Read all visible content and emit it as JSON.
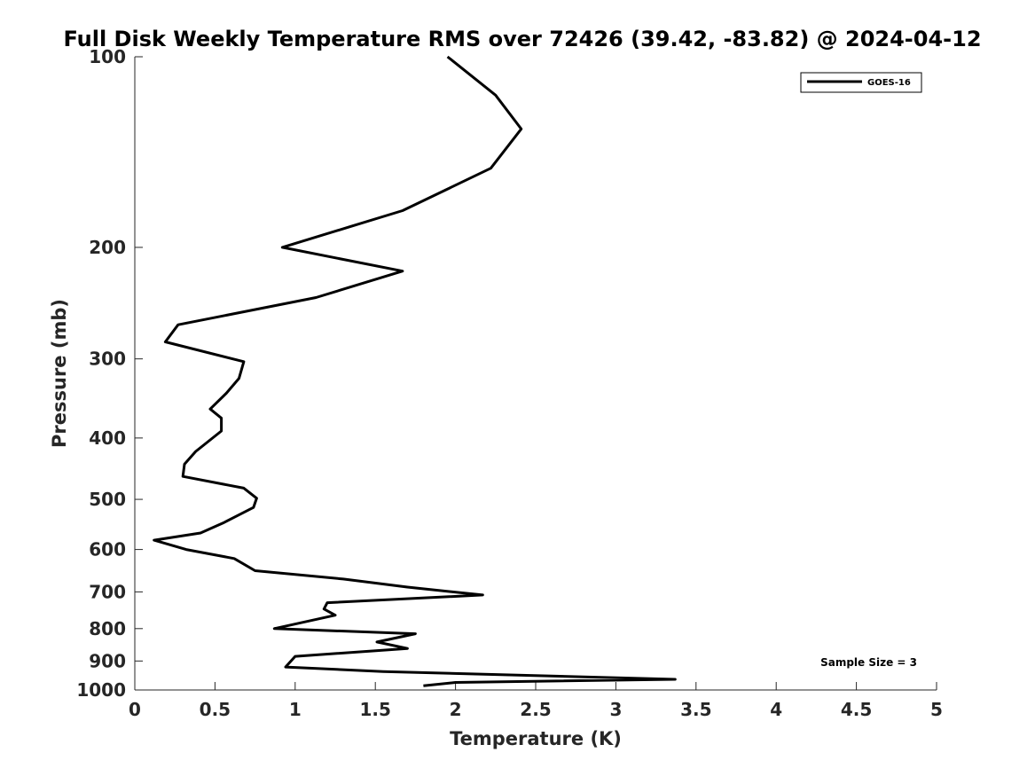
{
  "chart_data": {
    "type": "line",
    "title": "Full Disk Weekly Temperature RMS over 72426 (39.42, -83.82) @ 2024-04-12",
    "xlabel": "Temperature (K)",
    "ylabel": "Pressure (mb)",
    "xlim": [
      0,
      5
    ],
    "ylim": [
      1000,
      100
    ],
    "yscale": "log",
    "xticks": [
      0,
      0.5,
      1,
      1.5,
      2,
      2.5,
      3,
      3.5,
      4,
      4.5,
      5
    ],
    "xtick_labels": [
      "0",
      "0.5",
      "1",
      "1.5",
      "2",
      "2.5",
      "3",
      "3.5",
      "4",
      "4.5",
      "5"
    ],
    "yticks": [
      100,
      200,
      300,
      400,
      500,
      600,
      700,
      800,
      900,
      1000
    ],
    "ytick_labels": [
      "100",
      "200",
      "300",
      "400",
      "500",
      "600",
      "700",
      "800",
      "900",
      "1000"
    ],
    "grid": false,
    "legend_position": "top-right",
    "series": [
      {
        "name": "GOES-16",
        "color": "#000000",
        "points": [
          [
            1.95,
            100
          ],
          [
            2.25,
            115
          ],
          [
            2.41,
            130
          ],
          [
            2.22,
            150
          ],
          [
            1.67,
            175
          ],
          [
            0.92,
            200
          ],
          [
            1.67,
            218
          ],
          [
            1.13,
            240
          ],
          [
            0.27,
            265
          ],
          [
            0.19,
            282
          ],
          [
            0.68,
            303
          ],
          [
            0.65,
            322
          ],
          [
            0.57,
            340
          ],
          [
            0.47,
            360
          ],
          [
            0.54,
            372
          ],
          [
            0.54,
            390
          ],
          [
            0.38,
            420
          ],
          [
            0.31,
            440
          ],
          [
            0.3,
            460
          ],
          [
            0.68,
            480
          ],
          [
            0.76,
            498
          ],
          [
            0.74,
            515
          ],
          [
            0.55,
            545
          ],
          [
            0.41,
            565
          ],
          [
            0.12,
            580
          ],
          [
            0.32,
            600
          ],
          [
            0.62,
            620
          ],
          [
            0.75,
            648
          ],
          [
            1.3,
            668
          ],
          [
            1.7,
            688
          ],
          [
            2.17,
            708
          ],
          [
            1.2,
            728
          ],
          [
            1.18,
            745
          ],
          [
            1.25,
            762
          ],
          [
            0.87,
            800
          ],
          [
            1.75,
            815
          ],
          [
            1.51,
            840
          ],
          [
            1.7,
            860
          ],
          [
            1.0,
            885
          ],
          [
            0.94,
            920
          ],
          [
            1.55,
            935
          ],
          [
            3.37,
            962
          ],
          [
            2.0,
            973
          ],
          [
            1.8,
            985
          ]
        ]
      }
    ],
    "annotations": [
      {
        "text": "Sample Size = 3",
        "position": "bottom-right"
      }
    ]
  }
}
